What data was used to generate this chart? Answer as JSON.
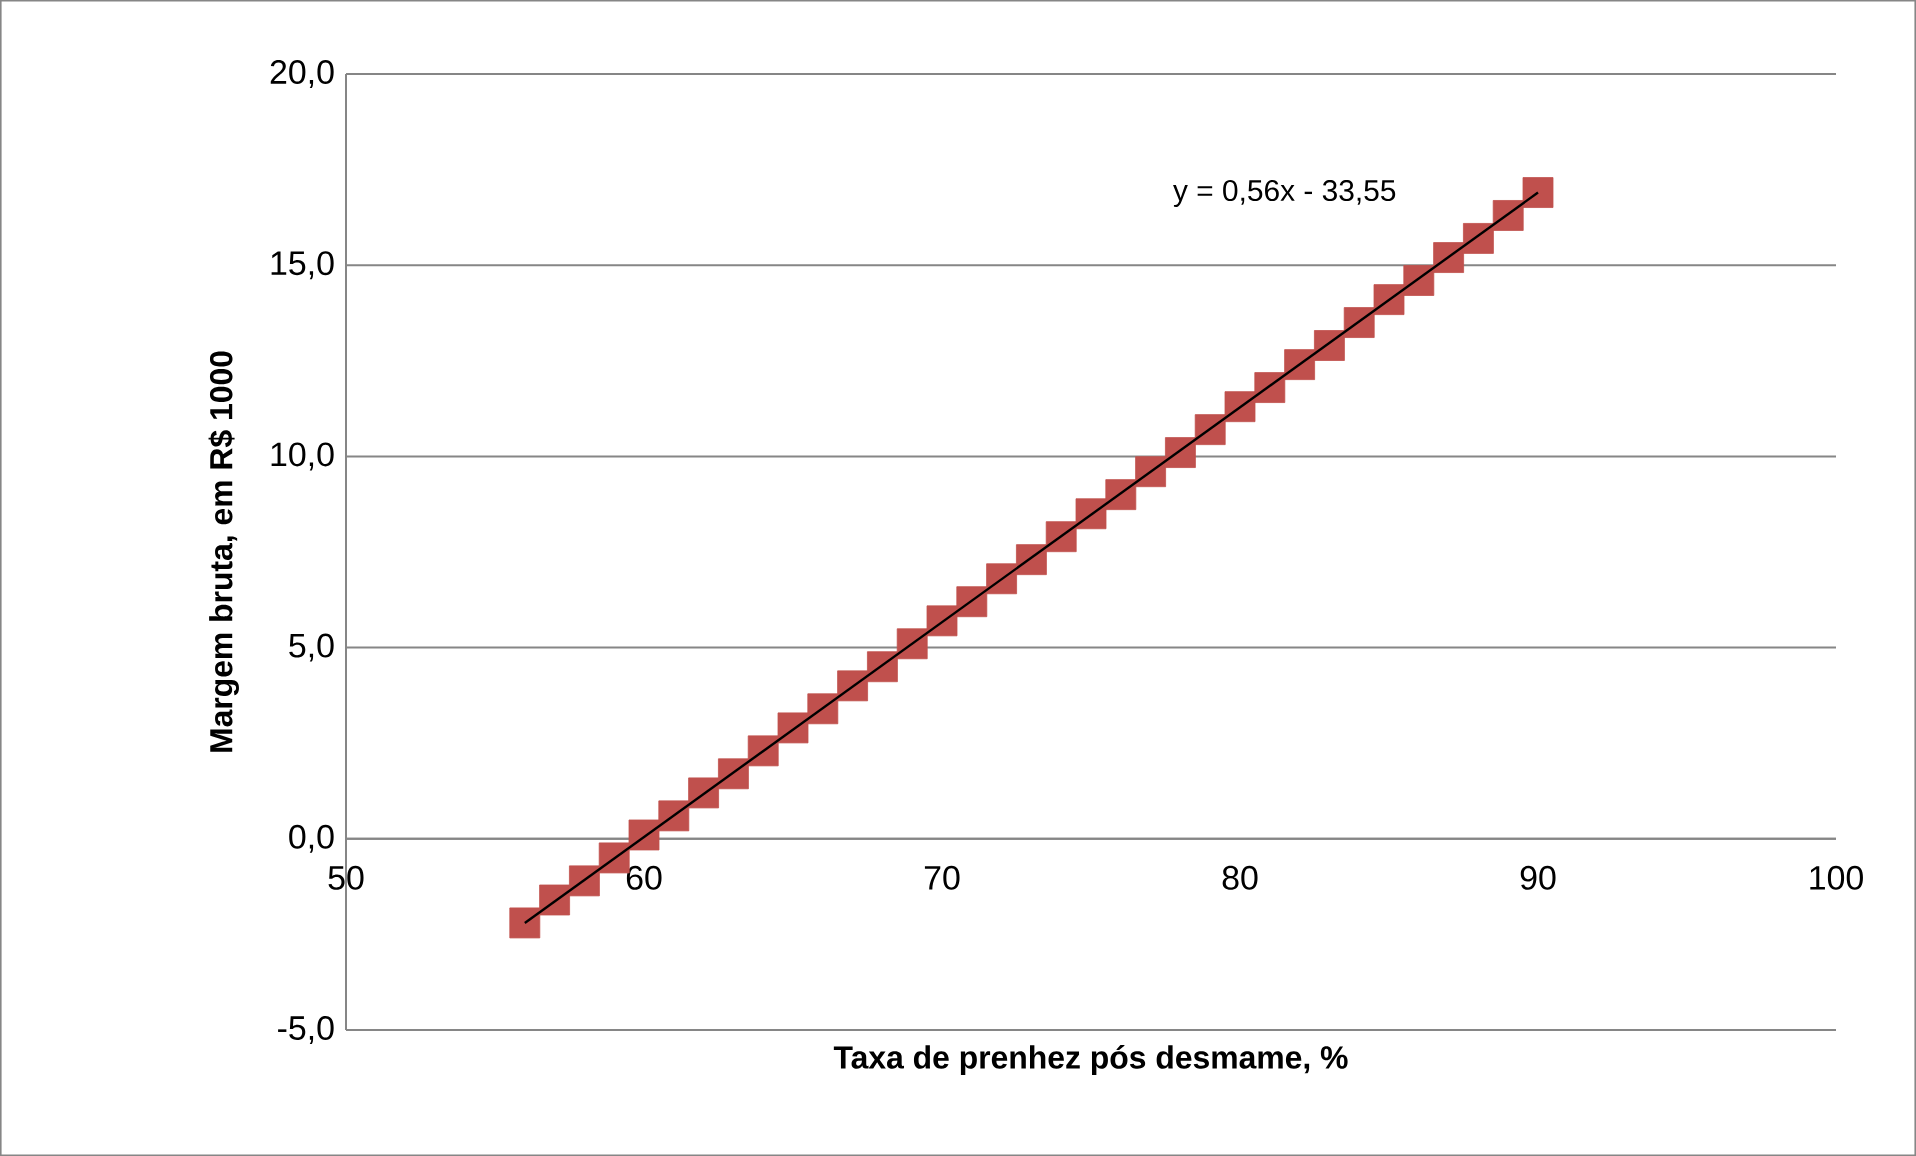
{
  "chart_data": {
    "type": "scatter",
    "xlabel": "Taxa de prenhez pós desmame, %",
    "ylabel": "Margem bruta, em R$ 1000",
    "xlim": [
      50,
      100
    ],
    "xticks": [
      50,
      60,
      70,
      80,
      90,
      100
    ],
    "ylim": [
      -5,
      20
    ],
    "yticks": [
      {
        "value": -5,
        "label": "-5,0"
      },
      {
        "value": 0,
        "label": "0,0"
      },
      {
        "value": 5,
        "label": "5,0"
      },
      {
        "value": 10,
        "label": "10,0"
      },
      {
        "value": 15,
        "label": "15,0"
      },
      {
        "value": 20,
        "label": "20,0"
      }
    ],
    "grid": "y",
    "annotations": [
      "y = 0,56x - 33,55"
    ],
    "series": [
      {
        "color": "#c0504d",
        "marker": "square",
        "x": [
          56,
          57,
          58,
          59,
          60,
          61,
          62,
          63,
          64,
          65,
          66,
          67,
          68,
          69,
          70,
          71,
          72,
          73,
          74,
          75,
          76,
          77,
          78,
          79,
          80,
          81,
          82,
          83,
          84,
          85,
          86,
          87,
          88,
          89,
          90
        ],
        "values": [
          -2.2,
          -1.6,
          -1.1,
          -0.5,
          0.1,
          0.6,
          1.2,
          1.7,
          2.3,
          2.9,
          3.4,
          4.0,
          4.5,
          5.1,
          5.7,
          6.2,
          6.8,
          7.3,
          7.9,
          8.5,
          9.0,
          9.6,
          10.1,
          10.7,
          11.3,
          11.8,
          12.4,
          12.9,
          13.5,
          14.1,
          14.6,
          15.2,
          15.7,
          16.3,
          16.9
        ]
      },
      {
        "type": "line",
        "color": "#000000",
        "x": [
          56,
          90
        ],
        "values": [
          -2.2,
          16.9
        ]
      }
    ]
  }
}
